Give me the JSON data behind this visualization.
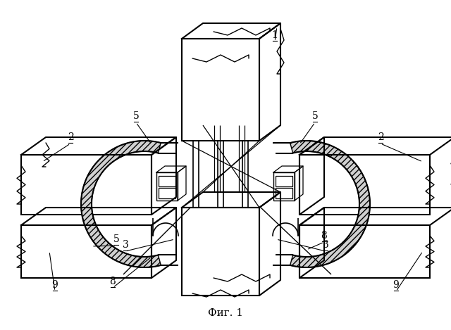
{
  "background_color": "#ffffff",
  "line_color": "#000000",
  "fig_width": 6.4,
  "fig_height": 4.69,
  "caption": "Фиг. 1",
  "caption_fontsize": 11,
  "label_fontsize": 10
}
